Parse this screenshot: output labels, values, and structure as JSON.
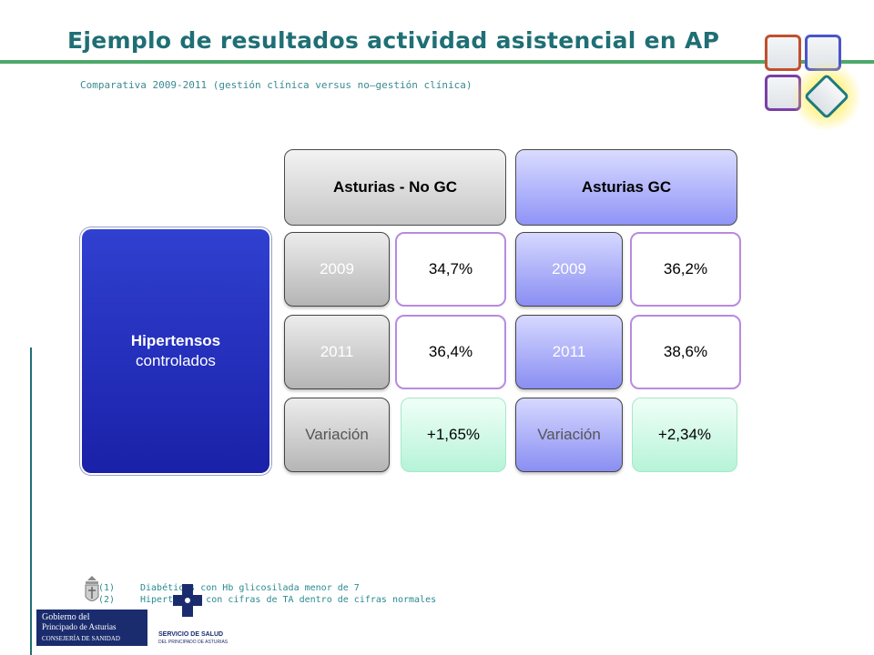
{
  "title": "Ejemplo de resultados actividad asistencial  en AP",
  "subtitle": "Comparativa 2009-2011 (gestión clínica versus no–gestión clínica)",
  "indicator": {
    "line1": "Hipertensos",
    "line2": "controlados"
  },
  "groups": [
    {
      "name": "Asturias - No GC",
      "rows": [
        {
          "label": "2009",
          "value": "34,7%"
        },
        {
          "label": "2011",
          "value": "36,4%"
        },
        {
          "label": "Variación",
          "value": "+1,65%"
        }
      ]
    },
    {
      "name": "Asturias GC",
      "rows": [
        {
          "label": "2009",
          "value": "36,2%"
        },
        {
          "label": "2011",
          "value": "38,6%"
        },
        {
          "label": "Variación",
          "value": "+2,34%"
        }
      ]
    }
  ],
  "footnotes": [
    {
      "num": "(1)",
      "text": "Diabéticos  con Hb glicosilada menor de 7"
    },
    {
      "num": "(2)",
      "text": "Hipertensos  con cifras de TA dentro  de cifras normales"
    }
  ],
  "logos": {
    "gov_line1": "Gobierno del",
    "gov_line2": "Principado de Asturias",
    "gov_line3": "CONSEJERÍA DE SANIDAD",
    "health_line1": "SERVICIO DE SALUD",
    "health_line2": "DEL PRINCIPADO DE ASTURIAS"
  },
  "colors": {
    "title": "#1f6f75",
    "title_rule": "#4ea86a",
    "indicator_box": "#1a21a8",
    "value_border": "#b88ae0",
    "variation_fill": "#b6f3d8"
  }
}
